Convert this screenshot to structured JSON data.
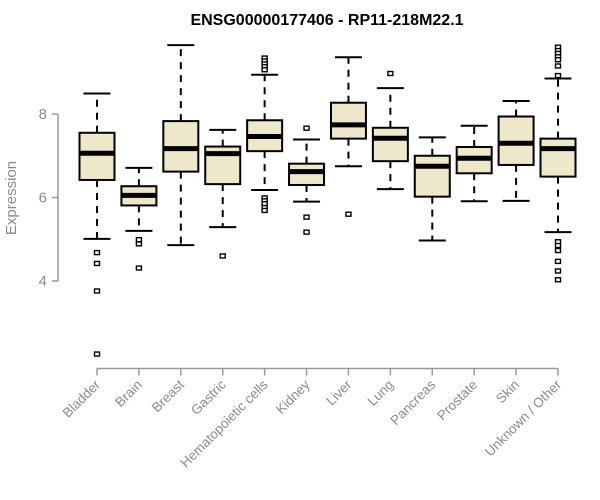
{
  "title": "ENSG00000177406 - RP11-218M22.1",
  "colors": {
    "box_fill": "#EFE7C9",
    "box_stroke": "#000000",
    "median": "#000000",
    "whisker": "#000000",
    "outlier_fill": "#ffffff",
    "axis_line": "#9a9a9a",
    "axis_label": "#8a8a8a",
    "title": "#000000"
  },
  "chart_data": {
    "type": "box",
    "title": "ENSG00000177406 - RP11-218M22.1",
    "xlabel": "",
    "ylabel": "Expression",
    "yticks": [
      4,
      6,
      8
    ],
    "y_axis_range": [
      4,
      8
    ],
    "grid": false,
    "whisker_style": "dashed",
    "categories": [
      "Bladder",
      "Brain",
      "Breast",
      "Gastric",
      "Hematopoietic cells",
      "Kidney",
      "Liver",
      "Lung",
      "Pancreas",
      "Prostate",
      "Skin",
      "Unknown / Other"
    ],
    "series": [
      {
        "name": "Bladder",
        "whisker_low": 5.01,
        "q1": 6.42,
        "median": 7.06,
        "q3": 7.55,
        "whisker_high": 8.49,
        "outliers": [
          4.68,
          4.42,
          3.76,
          2.25
        ]
      },
      {
        "name": "Brain",
        "whisker_low": 5.2,
        "q1": 5.81,
        "median": 6.05,
        "q3": 6.27,
        "whisker_high": 6.71,
        "outliers": [
          4.99,
          4.89,
          4.31
        ]
      },
      {
        "name": "Breast",
        "whisker_low": 4.86,
        "q1": 6.62,
        "median": 7.17,
        "q3": 7.83,
        "whisker_high": 9.65,
        "outliers": []
      },
      {
        "name": "Gastric",
        "whisker_low": 5.29,
        "q1": 6.32,
        "median": 7.05,
        "q3": 7.22,
        "whisker_high": 7.62,
        "outliers": [
          4.6
        ]
      },
      {
        "name": "Hematopoietic cells",
        "whisker_low": 6.18,
        "q1": 7.11,
        "median": 7.46,
        "q3": 7.85,
        "whisker_high": 8.94,
        "outliers": [
          9.34,
          9.27,
          9.2,
          9.13,
          9.06,
          5.99,
          5.92,
          5.85,
          5.76,
          5.69
        ]
      },
      {
        "name": "Kidney",
        "whisker_low": 5.9,
        "q1": 6.3,
        "median": 6.62,
        "q3": 6.81,
        "whisker_high": 7.39,
        "outliers": [
          7.66,
          5.53,
          5.17
        ]
      },
      {
        "name": "Liver",
        "whisker_low": 6.75,
        "q1": 7.41,
        "median": 7.74,
        "q3": 8.27,
        "whisker_high": 9.36,
        "outliers": [
          5.6
        ]
      },
      {
        "name": "Lung",
        "whisker_low": 6.2,
        "q1": 6.87,
        "median": 7.42,
        "q3": 7.67,
        "whisker_high": 8.62,
        "outliers": [
          8.97
        ]
      },
      {
        "name": "Pancreas",
        "whisker_low": 4.97,
        "q1": 6.02,
        "median": 6.75,
        "q3": 7.0,
        "whisker_high": 7.44,
        "outliers": []
      },
      {
        "name": "Prostate",
        "whisker_low": 5.91,
        "q1": 6.58,
        "median": 6.94,
        "q3": 7.21,
        "whisker_high": 7.72,
        "outliers": []
      },
      {
        "name": "Skin",
        "whisker_low": 5.92,
        "q1": 6.78,
        "median": 7.3,
        "q3": 7.94,
        "whisker_high": 8.31,
        "outliers": []
      },
      {
        "name": "Unknown / Other",
        "whisker_low": 5.17,
        "q1": 6.5,
        "median": 7.17,
        "q3": 7.41,
        "whisker_high": 8.85,
        "outliers": [
          9.6,
          9.52,
          9.45,
          9.37,
          9.3,
          9.15,
          8.92,
          4.94,
          4.85,
          4.73,
          4.47,
          4.24,
          4.03
        ]
      }
    ]
  }
}
